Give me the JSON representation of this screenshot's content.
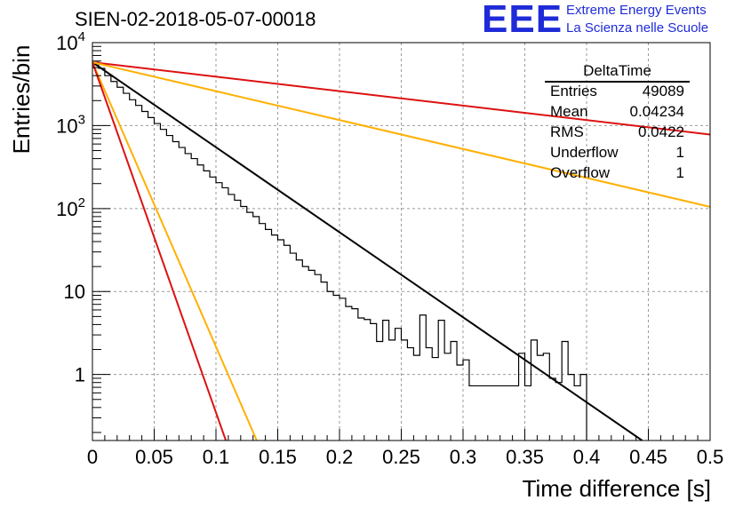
{
  "page_title": "SIEN-02-2018-05-07-00018",
  "logo": {
    "mark": "EEE",
    "line1": "Extreme Energy Events",
    "line2": "La Scienza nelle Scuole",
    "color": "#1f2bd8"
  },
  "stats": {
    "title": "DeltaTime",
    "rows": [
      {
        "key": "Entries",
        "value": "49089"
      },
      {
        "key": "Mean",
        "value": "0.04234"
      },
      {
        "key": "RMS",
        "value": "0.0422"
      },
      {
        "key": "Underflow",
        "value": "1"
      },
      {
        "key": "Overflow",
        "value": "1"
      }
    ]
  },
  "chart_data": {
    "type": "line",
    "xlabel": "Time difference [s]",
    "ylabel": "Entries/bin",
    "xlim": [
      0,
      0.5
    ],
    "ylim": [
      0.16,
      10000
    ],
    "yscale": "log",
    "grid": true,
    "x_ticks": [
      "0",
      "0.05",
      "0.1",
      "0.15",
      "0.2",
      "0.25",
      "0.3",
      "0.35",
      "0.4",
      "0.45",
      "0.5"
    ],
    "y_ticks": [
      {
        "value": 1,
        "base": "1",
        "exp": ""
      },
      {
        "value": 10,
        "base": "10",
        "exp": ""
      },
      {
        "value": 100,
        "base": "10",
        "exp": "2"
      },
      {
        "value": 1000,
        "base": "10",
        "exp": "3"
      },
      {
        "value": 10000,
        "base": "10",
        "exp": "4"
      }
    ],
    "histogram": {
      "color": "#000000",
      "bin_width": 0.005,
      "values": [
        5800,
        4900,
        4000,
        3400,
        2900,
        2450,
        2050,
        1750,
        1480,
        1250,
        1060,
        900,
        760,
        640,
        545,
        460,
        400,
        335,
        285,
        240,
        205,
        178,
        148,
        126,
        106,
        90,
        80,
        66,
        56,
        48,
        42,
        36,
        29,
        24,
        20,
        18,
        16,
        13,
        10,
        9,
        8.3,
        6.6,
        6.2,
        4.8,
        4.6,
        4.1,
        2.5,
        4.5,
        2.6,
        3.6,
        2.6,
        2.1,
        1.7,
        5.2,
        2.1,
        1.6,
        4.5,
        1.8,
        2.5,
        1.3,
        1.5,
        0.73,
        0.73,
        0.73,
        0.73,
        0.73,
        0.73,
        0.73,
        0.73,
        1.8,
        0.73,
        2.6,
        1.7,
        1.8,
        0.9,
        0.8,
        2.5,
        1.0,
        0.73,
        1.0
      ]
    },
    "lines": [
      {
        "color": "#000000",
        "points": [
          [
            0,
            5800
          ],
          [
            0.445,
            0.16
          ]
        ]
      },
      {
        "color": "#dd1111",
        "points": [
          [
            0,
            5800
          ],
          [
            0.5,
            780
          ]
        ]
      },
      {
        "color": "#ffb000",
        "points": [
          [
            0,
            5800
          ],
          [
            0.5,
            105
          ]
        ]
      },
      {
        "color": "#ffb000",
        "points": [
          [
            0,
            5800
          ],
          [
            0.133,
            0.16
          ]
        ]
      },
      {
        "color": "#dd1111",
        "points": [
          [
            0,
            5800
          ],
          [
            0.108,
            0.16
          ]
        ]
      }
    ]
  }
}
